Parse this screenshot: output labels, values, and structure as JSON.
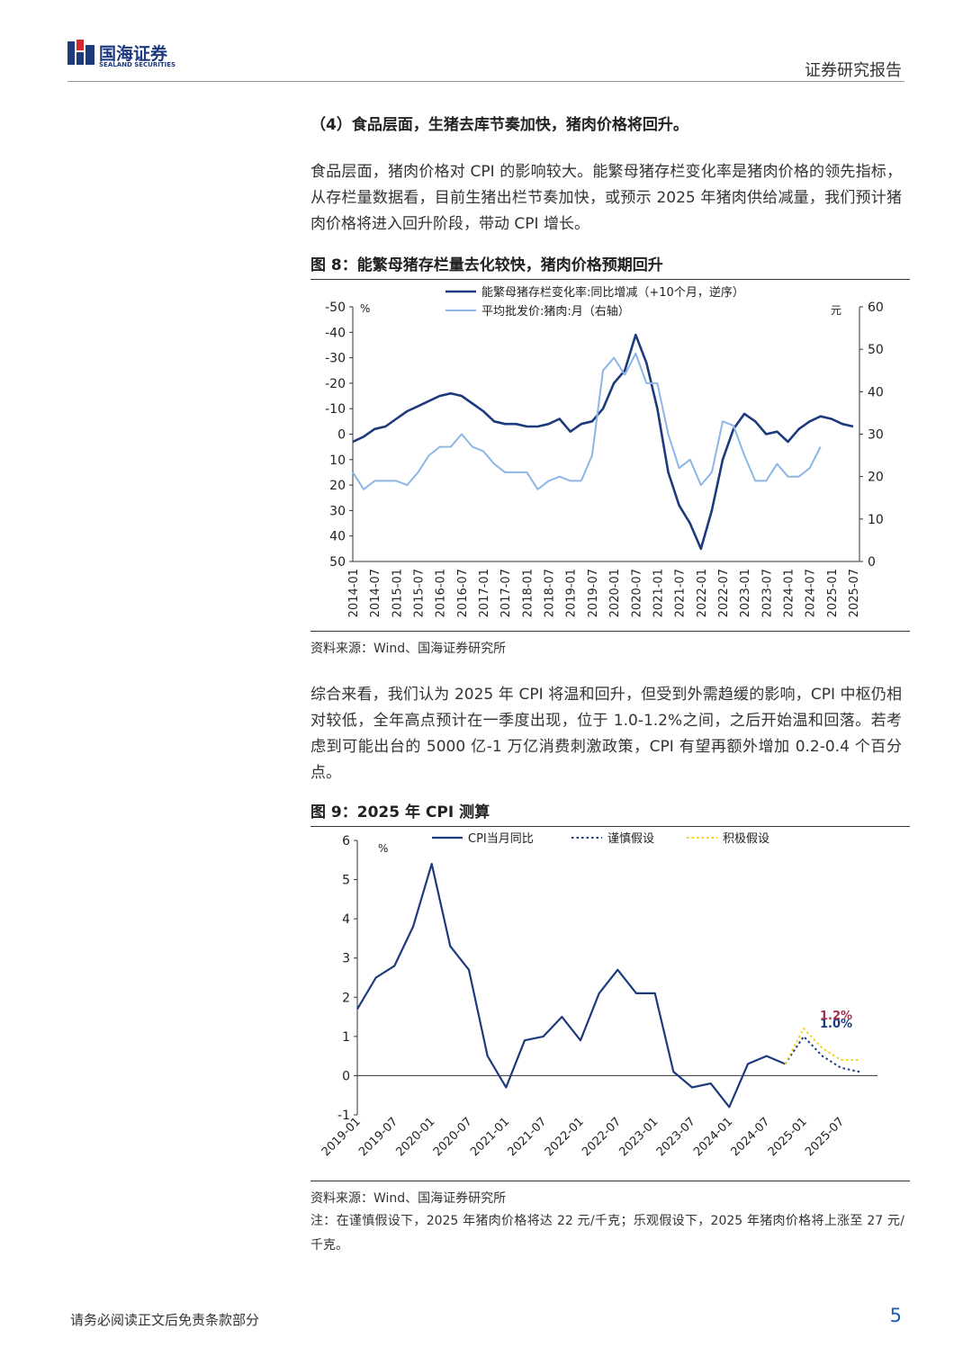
{
  "header": {
    "logo_cn": "国海证券",
    "logo_en": "SEALAND SECURITIES",
    "report_type": "证券研究报告"
  },
  "section_heading": "（4）食品层面，生猪去库节奏加快，猪肉价格将回升。",
  "paragraphs": [
    "食品层面，猪肉价格对 CPI 的影响较大。能繁母猪存栏变化率是猪肉价格的领先指标，从存栏量数据看，目前生猪出栏节奏加快，或预示 2025 年猪肉供给减量，我们预计猪肉价格将进入回升阶段，带动 CPI 增长。",
    "综合来看，我们认为 2025 年 CPI 将温和回升，但受到外需趋缓的影响，CPI 中枢仍相对较低，全年高点预计在一季度出现，位于 1.0-1.2%之间，之后开始温和回落。若考虑到可能出台的 5000 亿-1 万亿消费刺激政策，CPI 有望再额外增加 0.2-0.4 个百分点。"
  ],
  "figures": [
    {
      "caption": "图 8：能繁母猪存栏量去化较快，猪肉价格预期回升",
      "source": "资料来源：Wind、国海证券研究所"
    },
    {
      "caption": "图 9：2025 年 CPI 测算",
      "source": "资料来源：Wind、国海证券研究所",
      "note": "注：在谨慎假设下，2025 年猪肉价格将达 22 元/千克；乐观假设下，2025 年猪肉价格将上涨至 27 元/千克。"
    }
  ],
  "footer": {
    "disclaimer": "请务必阅读正文后免责条款部分",
    "page_number": "5"
  },
  "chart_data": [
    {
      "type": "line",
      "categories": [
        "2014-01",
        null,
        "2014-07",
        null,
        "2015-01",
        null,
        "2015-07",
        null,
        "2016-01",
        null,
        "2016-07",
        null,
        "2017-01",
        null,
        "2017-07",
        null,
        "2018-01",
        null,
        "2018-07",
        null,
        "2019-01",
        null,
        "2019-07",
        null,
        "2020-01",
        null,
        "2020-07",
        null,
        "2021-01",
        null,
        "2021-07",
        null,
        "2022-01",
        null,
        "2022-07",
        null,
        "2023-01",
        null,
        "2023-07",
        null,
        "2024-01",
        null,
        "2024-07",
        null,
        "2025-01",
        null,
        "2025-07"
      ],
      "series": [
        {
          "name": "能繁母猪存栏变化率:同比增减（+10个月，逆序）",
          "color": "#1c3a7c",
          "axis": "y",
          "values": [
            3,
            1,
            -2,
            -3,
            -6,
            -9,
            -11,
            -13,
            -15,
            -16,
            -15,
            -12,
            -9,
            -5,
            -4,
            -4,
            -3,
            -3,
            -4,
            -6,
            -1,
            -4,
            -5,
            -10,
            -20,
            -25,
            -39,
            -28,
            -10,
            15,
            28,
            35,
            45,
            30,
            10,
            -2,
            -8,
            -5,
            0,
            -1,
            3,
            -2,
            -5,
            -7,
            -6,
            -4,
            -3
          ]
        },
        {
          "name": "平均批发价:猪肉:月（右轴）",
          "color": "#8db6e6",
          "axis": "y2",
          "values": [
            21,
            17,
            19,
            19,
            19,
            18,
            21,
            25,
            27,
            27,
            30,
            27,
            26,
            23,
            21,
            21,
            21,
            17,
            19,
            20,
            19,
            19,
            25,
            45,
            48,
            44,
            49,
            42,
            42,
            30,
            22,
            24,
            18,
            21,
            33,
            32,
            25,
            19,
            19,
            23,
            20,
            20,
            22,
            27,
            null,
            null,
            null
          ]
        }
      ],
      "ylim": [
        50,
        -50
      ],
      "yticks": [
        -50,
        -40,
        -30,
        -20,
        -10,
        0,
        10,
        20,
        30,
        40,
        50
      ],
      "y_unit": "%",
      "y2lim": [
        0,
        60
      ],
      "y2ticks": [
        0,
        10,
        20,
        30,
        40,
        50,
        60
      ],
      "y2_unit": "元"
    },
    {
      "type": "line",
      "categories": [
        "2019-01",
        null,
        "2019-07",
        null,
        "2020-01",
        null,
        "2020-07",
        null,
        "2021-01",
        null,
        "2021-07",
        null,
        "2022-01",
        null,
        "2022-07",
        null,
        "2023-01",
        null,
        "2023-07",
        null,
        "2024-01",
        null,
        "2024-07",
        null,
        "2025-01",
        null,
        "2025-07",
        null
      ],
      "series": [
        {
          "name": "CPI当月同比",
          "color": "#1c3a7c",
          "style": "solid",
          "values": [
            1.7,
            2.5,
            2.8,
            3.8,
            5.4,
            3.3,
            2.7,
            0.5,
            -0.3,
            0.9,
            1.0,
            1.5,
            0.9,
            2.1,
            2.7,
            2.1,
            2.1,
            0.1,
            -0.3,
            -0.2,
            -0.8,
            0.3,
            0.5,
            0.3,
            null,
            null,
            null,
            null
          ]
        },
        {
          "name": "谨慎假设",
          "color": "#1c3a7c",
          "style": "dotted",
          "label_color": "#1c3a7c",
          "values": [
            null,
            null,
            null,
            null,
            null,
            null,
            null,
            null,
            null,
            null,
            null,
            null,
            null,
            null,
            null,
            null,
            null,
            null,
            null,
            null,
            null,
            null,
            null,
            0.3,
            1.0,
            0.5,
            0.2,
            0.1
          ],
          "value_labels": [
            null,
            null,
            null,
            null,
            null,
            null,
            null,
            null,
            null,
            null,
            null,
            null,
            null,
            null,
            null,
            null,
            null,
            null,
            null,
            null,
            null,
            null,
            null,
            null,
            "1.0%",
            null,
            null,
            null
          ]
        },
        {
          "name": "积极假设",
          "color": "#f2d21b",
          "style": "dotted",
          "label_color": "#a3304c",
          "values": [
            null,
            null,
            null,
            null,
            null,
            null,
            null,
            null,
            null,
            null,
            null,
            null,
            null,
            null,
            null,
            null,
            null,
            null,
            null,
            null,
            null,
            null,
            null,
            0.3,
            1.2,
            0.7,
            0.4,
            0.4
          ],
          "value_labels": [
            null,
            null,
            null,
            null,
            null,
            null,
            null,
            null,
            null,
            null,
            null,
            null,
            null,
            null,
            null,
            null,
            null,
            null,
            null,
            null,
            null,
            null,
            null,
            null,
            "1.2%",
            null,
            null,
            null
          ]
        }
      ],
      "ylim": [
        -1,
        6
      ],
      "yticks": [
        -1,
        0,
        1,
        2,
        3,
        4,
        5,
        6
      ],
      "y_unit": "%"
    }
  ]
}
